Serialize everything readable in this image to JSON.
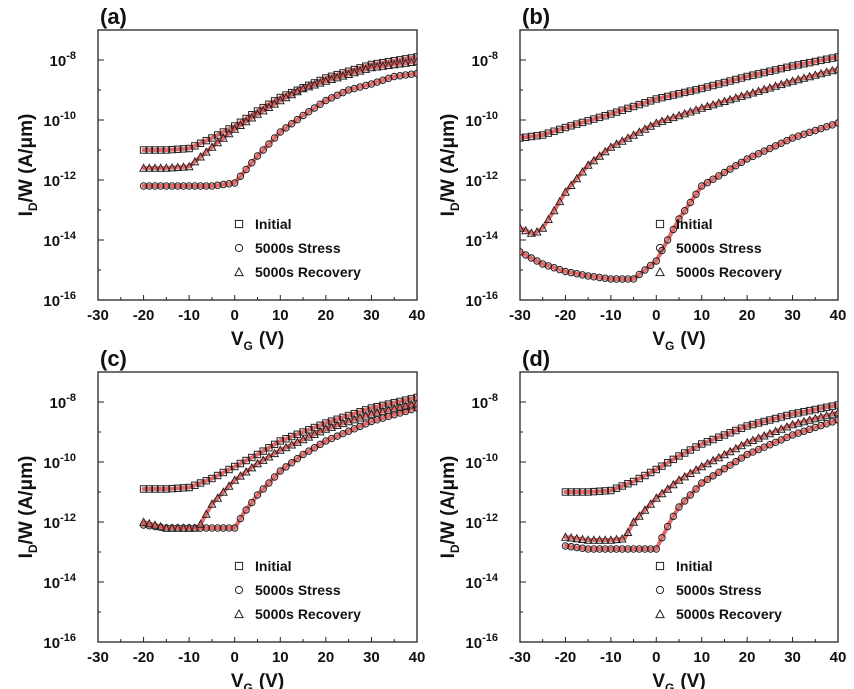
{
  "chart_data": [
    {
      "type": "line",
      "panel_label": "(a)",
      "xlabel": {
        "main": "V",
        "sub": "G",
        "unit": "(V)"
      },
      "ylabel": {
        "p1": "I",
        "sub": "D",
        "p2": "/W (A/μm)"
      },
      "xlim": [
        -30,
        40
      ],
      "xticks": [
        "-30",
        "-20",
        "-10",
        "0",
        "10",
        "20",
        "30",
        "40"
      ],
      "ylim_log10": [
        -16,
        -7
      ],
      "ylog": true,
      "yticks": [
        {
          "base": "10",
          "exp": "-8"
        },
        {
          "base": "10",
          "exp": "-10"
        },
        {
          "base": "10",
          "exp": "-12"
        },
        {
          "base": "10",
          "exp": "-14"
        },
        {
          "base": "10",
          "exp": "-16"
        }
      ],
      "legend": [
        "Initial",
        "5000s Stress",
        "5000s Recovery"
      ],
      "legend_position": "bottom-right",
      "fit_line_color": "#e05a5a",
      "series": [
        {
          "name": "Initial",
          "marker": "square",
          "x": [
            -20,
            -15,
            -10,
            -5,
            0,
            5,
            10,
            20,
            30,
            40
          ],
          "y_log10": [
            -11.0,
            -11.0,
            -10.95,
            -10.6,
            -10.2,
            -9.7,
            -9.25,
            -8.6,
            -8.15,
            -7.9
          ]
        },
        {
          "name": "5000s Stress",
          "marker": "circle",
          "x": [
            -20,
            -10,
            -5,
            0,
            5,
            10,
            15,
            20,
            25,
            30,
            35,
            40
          ],
          "y_log10": [
            -12.2,
            -12.2,
            -12.2,
            -12.1,
            -11.2,
            -10.4,
            -9.85,
            -9.35,
            -9.0,
            -8.8,
            -8.55,
            -8.45
          ]
        },
        {
          "name": "5000s Recovery",
          "marker": "triangle",
          "x": [
            -20,
            -15,
            -10,
            -5,
            0,
            5,
            10,
            15,
            20,
            30,
            40
          ],
          "y_log10": [
            -11.6,
            -11.6,
            -11.55,
            -10.9,
            -10.3,
            -9.8,
            -9.35,
            -8.95,
            -8.7,
            -8.25,
            -8.05
          ]
        }
      ]
    },
    {
      "type": "line",
      "panel_label": "(b)",
      "xlabel": {
        "main": "V",
        "sub": "G",
        "unit": "(V)"
      },
      "ylabel": {
        "p1": "I",
        "sub": "D",
        "p2": "/W (A/μm)"
      },
      "xlim": [
        -30,
        40
      ],
      "xticks": [
        "-30",
        "-20",
        "-10",
        "0",
        "10",
        "20",
        "30",
        "40"
      ],
      "ylim_log10": [
        -16,
        -7
      ],
      "ylog": true,
      "yticks": [
        {
          "base": "10",
          "exp": "-8"
        },
        {
          "base": "10",
          "exp": "-10"
        },
        {
          "base": "10",
          "exp": "-12"
        },
        {
          "base": "10",
          "exp": "-14"
        },
        {
          "base": "10",
          "exp": "-16"
        }
      ],
      "legend": [
        "Initial",
        "5000s Stress",
        "5000s Recovery"
      ],
      "legend_position": "bottom-right",
      "fit_line_color": "#e05a5a",
      "series": [
        {
          "name": "Initial",
          "marker": "square",
          "x": [
            -30,
            -25,
            -20,
            -10,
            0,
            10,
            20,
            30,
            40
          ],
          "y_log10": [
            -10.6,
            -10.5,
            -10.25,
            -9.8,
            -9.3,
            -8.95,
            -8.55,
            -8.2,
            -7.9
          ]
        },
        {
          "name": "5000s Stress",
          "marker": "circle",
          "x": [
            -30,
            -25,
            -20,
            -15,
            -10,
            -5,
            0,
            5,
            10,
            20,
            30,
            40
          ],
          "y_log10": [
            -14.4,
            -14.8,
            -15.05,
            -15.2,
            -15.3,
            -15.3,
            -14.7,
            -13.3,
            -12.2,
            -11.3,
            -10.6,
            -10.1
          ]
        },
        {
          "name": "5000s Recovery",
          "marker": "triangle",
          "x": [
            -30,
            -27,
            -25,
            -22,
            -20,
            -15,
            -10,
            0,
            10,
            20,
            30,
            40
          ],
          "y_log10": [
            -13.6,
            -13.8,
            -13.6,
            -12.9,
            -12.4,
            -11.5,
            -10.9,
            -10.1,
            -9.6,
            -9.15,
            -8.7,
            -8.3
          ]
        }
      ]
    },
    {
      "type": "line",
      "panel_label": "(c)",
      "xlabel": {
        "main": "V",
        "sub": "G",
        "unit": "(V)"
      },
      "ylabel": {
        "p1": "I",
        "sub": "D",
        "p2": "/W (A/μm)"
      },
      "xlim": [
        -30,
        40
      ],
      "xticks": [
        "-30",
        "-20",
        "-10",
        "0",
        "10",
        "20",
        "30",
        "40"
      ],
      "ylim_log10": [
        -16,
        -7
      ],
      "ylog": true,
      "yticks": [
        {
          "base": "10",
          "exp": "-8"
        },
        {
          "base": "10",
          "exp": "-10"
        },
        {
          "base": "10",
          "exp": "-12"
        },
        {
          "base": "10",
          "exp": "-14"
        },
        {
          "base": "10",
          "exp": "-16"
        }
      ],
      "legend": [
        "Initial",
        "5000s Stress",
        "5000s Recovery"
      ],
      "legend_position": "bottom-right",
      "fit_line_color": "#e05a5a",
      "series": [
        {
          "name": "Initial",
          "marker": "square",
          "x": [
            -20,
            -15,
            -10,
            -5,
            0,
            5,
            10,
            20,
            30,
            40
          ],
          "y_log10": [
            -10.9,
            -10.9,
            -10.85,
            -10.55,
            -10.15,
            -9.75,
            -9.3,
            -8.7,
            -8.2,
            -7.85
          ]
        },
        {
          "name": "5000s Stress",
          "marker": "circle",
          "x": [
            -20,
            -15,
            -10,
            -5,
            0,
            2,
            5,
            10,
            15,
            20,
            30,
            40
          ],
          "y_log10": [
            -12.1,
            -12.2,
            -12.2,
            -12.2,
            -12.2,
            -11.7,
            -11.1,
            -10.3,
            -9.75,
            -9.3,
            -8.65,
            -8.2
          ]
        },
        {
          "name": "5000s Recovery",
          "marker": "triangle",
          "x": [
            -20,
            -15,
            -10,
            -8,
            -5,
            0,
            5,
            10,
            20,
            30,
            40
          ],
          "y_log10": [
            -12.0,
            -12.2,
            -12.2,
            -12.2,
            -11.4,
            -10.6,
            -10.05,
            -9.6,
            -8.9,
            -8.4,
            -8.05
          ]
        }
      ]
    },
    {
      "type": "line",
      "panel_label": "(d)",
      "xlabel": {
        "main": "V",
        "sub": "G",
        "unit": "(V)"
      },
      "ylabel": {
        "p1": "I",
        "sub": "D",
        "p2": "/W (A/μm)"
      },
      "xlim": [
        -30,
        40
      ],
      "xticks": [
        "-30",
        "-20",
        "-10",
        "0",
        "10",
        "20",
        "30",
        "40"
      ],
      "ylim_log10": [
        -16,
        -7
      ],
      "ylog": true,
      "yticks": [
        {
          "base": "10",
          "exp": "-8"
        },
        {
          "base": "10",
          "exp": "-10"
        },
        {
          "base": "10",
          "exp": "-12"
        },
        {
          "base": "10",
          "exp": "-14"
        },
        {
          "base": "10",
          "exp": "-16"
        }
      ],
      "legend": [
        "Initial",
        "5000s Stress",
        "5000s Recovery"
      ],
      "legend_position": "bottom-right",
      "fit_line_color": "#e05a5a",
      "series": [
        {
          "name": "Initial",
          "marker": "square",
          "x": [
            -20,
            -15,
            -10,
            -5,
            0,
            5,
            10,
            20,
            30,
            40
          ],
          "y_log10": [
            -11.0,
            -11.0,
            -10.95,
            -10.65,
            -10.25,
            -9.8,
            -9.4,
            -8.8,
            -8.4,
            -8.1
          ]
        },
        {
          "name": "5000s Stress",
          "marker": "circle",
          "x": [
            -20,
            -15,
            -10,
            -5,
            0,
            3,
            5,
            10,
            20,
            30,
            40
          ],
          "y_log10": [
            -12.8,
            -12.9,
            -12.9,
            -12.9,
            -12.9,
            -12.0,
            -11.5,
            -10.7,
            -9.75,
            -9.1,
            -8.6
          ]
        },
        {
          "name": "5000s Recovery",
          "marker": "triangle",
          "x": [
            -20,
            -15,
            -10,
            -7,
            -5,
            0,
            5,
            10,
            20,
            30,
            40
          ],
          "y_log10": [
            -12.5,
            -12.6,
            -12.6,
            -12.55,
            -12.0,
            -11.2,
            -10.6,
            -10.15,
            -9.35,
            -8.75,
            -8.35
          ]
        }
      ]
    }
  ]
}
